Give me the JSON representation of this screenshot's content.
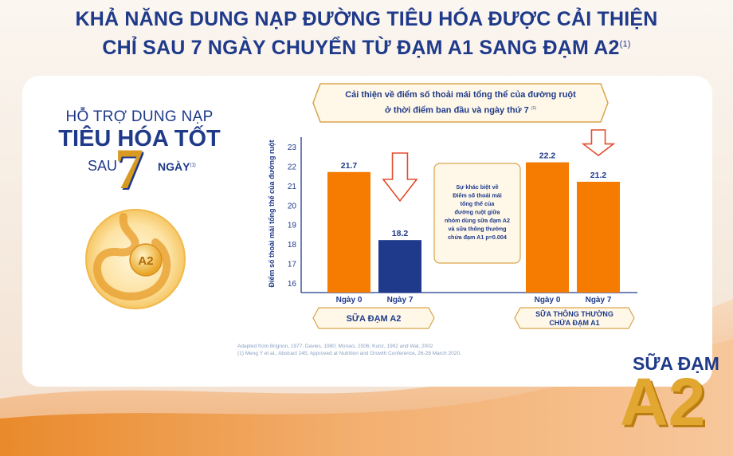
{
  "header": {
    "line1": "KHẢ NĂNG DUNG NẠP ĐƯỜNG TIÊU HÓA ĐƯỢC CẢI THIỆN",
    "line2": "CHỈ SAU 7 NGÀY CHUYỂN TỪ ĐẠM A1 SANG ĐẠM A2",
    "line2_sup": "(1)"
  },
  "left_panel": {
    "line1": "HỖ TRỢ DUNG NẠP",
    "line2": "TIÊU HÓA TỐT",
    "sau": "SAU",
    "seven": "7",
    "ngay": "NGÀY",
    "ngay_sup": "(1)",
    "stomach_label": "A2"
  },
  "banner": {
    "line1": "Cải thiện về điểm số thoải mái tổng thể của đường ruột",
    "line2": "ở thời điểm ban đầu và ngày thứ 7",
    "sup": "(1)"
  },
  "callout": {
    "lines": [
      "Sự khác biệt về",
      "Điểm số thoải mái",
      "tổng thể của",
      "đường ruột giữa",
      "nhóm dùng sữa đạm A2",
      "và sữa thông thường",
      "chứa đạm A1 p=0.004"
    ]
  },
  "chart_data": {
    "type": "bar",
    "ylabel": "Điểm số thoải mái tổng thể của đường ruột",
    "ylim": [
      16,
      23
    ],
    "yticks": [
      16,
      17,
      18,
      19,
      20,
      21,
      22,
      23
    ],
    "groups": [
      {
        "name": "SỮA ĐẠM A2",
        "bars": [
          {
            "label": "Ngày 0",
            "value": 21.7,
            "value_text": "21.7",
            "color": "#f57c00"
          },
          {
            "label": "Ngày 7",
            "value": 18.2,
            "value_text": "18.2",
            "color": "#1f3a8a"
          }
        ]
      },
      {
        "name_line1": "SỮA THÔNG THƯỜNG",
        "name_line2": "CHỨA ĐẠM A1",
        "bars": [
          {
            "label": "Ngày 0",
            "value": 22.2,
            "value_text": "22.2",
            "color": "#f57c00"
          },
          {
            "label": "Ngày 7",
            "value": 21.2,
            "value_text": "21.2",
            "color": "#f57c00"
          }
        ]
      }
    ]
  },
  "references": {
    "line1": "Adapted from Brignon, 1977; Davies, 1980; Monaci, 2006; Kunz, 1992 and Wal, 2002",
    "line2": "(1) Meng Y et al., Abstract 245, Approved at Nutrition and Growth Conference, 26-28 March 2020."
  },
  "brand": {
    "line1": "SỮA ĐẠM",
    "line2": "A2"
  }
}
